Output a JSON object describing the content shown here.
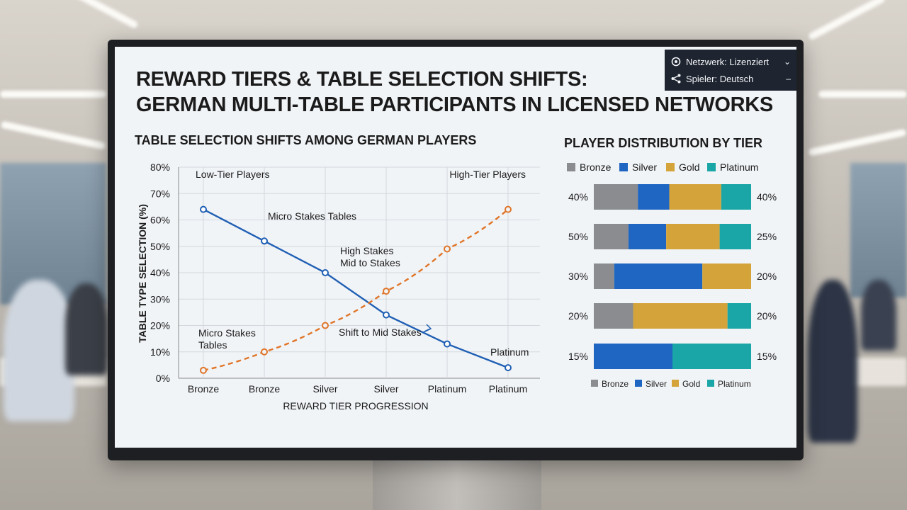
{
  "screen_title_line1": "REWARD TIERS & TABLE SELECTION SHIFTS:",
  "screen_title_line2": "GERMAN MULTI-TABLE PARTICIPANTS IN LICENSED NETWORKS",
  "status_panel": {
    "network_label": "Netzwerk: Lizenziert",
    "network_trail": "⌄",
    "player_label": "Spieler: Deutsch",
    "player_trail": "–"
  },
  "colors": {
    "blue_series": "#1f5fb4",
    "orange_series": "#e07528",
    "bronze": "#8a8c8f",
    "silver": "#1f66c2",
    "gold": "#d4a43b",
    "platinum": "#1aa6a6"
  },
  "chart_data": [
    {
      "type": "line",
      "title": "TABLE SELECTION SHIFTS AMONG GERMAN PLAYERS",
      "xlabel": "REWARD TIER PROGRESSION",
      "ylabel": "TABLE TYPE SELECTION (%)",
      "categories": [
        "Bronze",
        "Bronze",
        "Silver",
        "Silver",
        "Platinum",
        "Platinum"
      ],
      "ylim": [
        0,
        80
      ],
      "yticks": [
        "0%",
        "10%",
        "20%",
        "30%",
        "40%",
        "50%",
        "60%",
        "70%",
        "80%"
      ],
      "grid": true,
      "series": [
        {
          "name": "Low-Tier Players",
          "style": "solid",
          "color": "#1f5fb4",
          "values": [
            64,
            52,
            40,
            24,
            13,
            4
          ]
        },
        {
          "name": "High-Tier Players",
          "style": "dashed",
          "color": "#e07528",
          "values": [
            3,
            10,
            20,
            33,
            49,
            64
          ]
        }
      ],
      "annotations": [
        {
          "text": "Low-Tier Players"
        },
        {
          "text": "Micro Stakes Tables"
        },
        {
          "text": "High Stakes"
        },
        {
          "text": "Mid to Stakes"
        },
        {
          "text": "Micro Stakes"
        },
        {
          "text": "Tables"
        },
        {
          "text": "Shift to Mid Stakes"
        },
        {
          "text": "High-Tier Players"
        },
        {
          "text": "Platinum"
        }
      ]
    },
    {
      "type": "bar",
      "orientation": "horizontal",
      "stacked": true,
      "title": "PLAYER DISTRIBUTION BY TIER",
      "legend_top": [
        "Bronze",
        "Silver",
        "Gold",
        "Platinum"
      ],
      "legend_bottom": [
        "Bronze",
        "Silver",
        "Gold",
        "Platinum"
      ],
      "left_labels": [
        "40%",
        "50%",
        "30%",
        "20%",
        "15%"
      ],
      "right_labels": [
        "40%",
        "25%",
        "20%",
        "20%",
        "15%"
      ],
      "series": [
        {
          "name": "Bronze",
          "values": [
            28,
            22,
            13,
            25,
            0
          ]
        },
        {
          "name": "Silver",
          "values": [
            20,
            24,
            56,
            0,
            50
          ]
        },
        {
          "name": "Gold",
          "values": [
            33,
            34,
            31,
            60,
            0
          ]
        },
        {
          "name": "Platinum",
          "values": [
            19,
            20,
            0,
            15,
            50
          ]
        }
      ]
    }
  ]
}
